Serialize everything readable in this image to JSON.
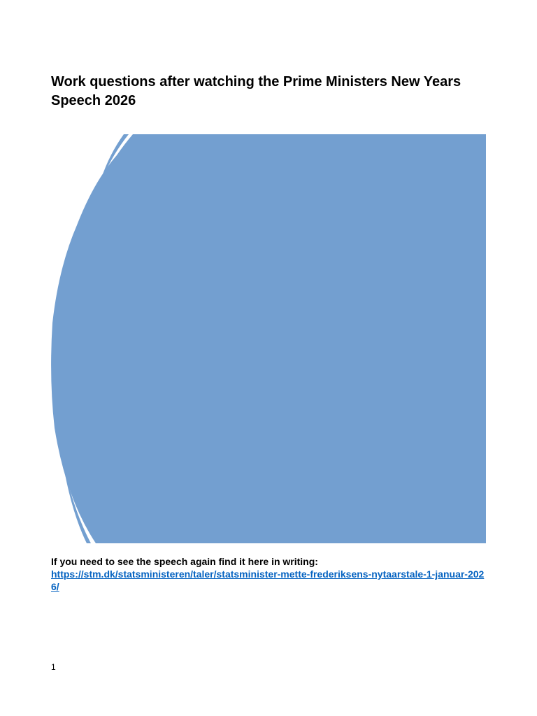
{
  "document": {
    "title": "Work questions after watching the Prime Ministers New Years Speech 2026",
    "intro_text": "If you need to see the speech again find it here in writing:",
    "speech_link": "https://stm.dk/statsministeren/taler/statsminister-mette-frederiksens-nytaarstale-1-januar-2026/",
    "page_number": "1"
  },
  "colors": {
    "cover_fill": "#739fd0",
    "link": "#0563c1"
  }
}
